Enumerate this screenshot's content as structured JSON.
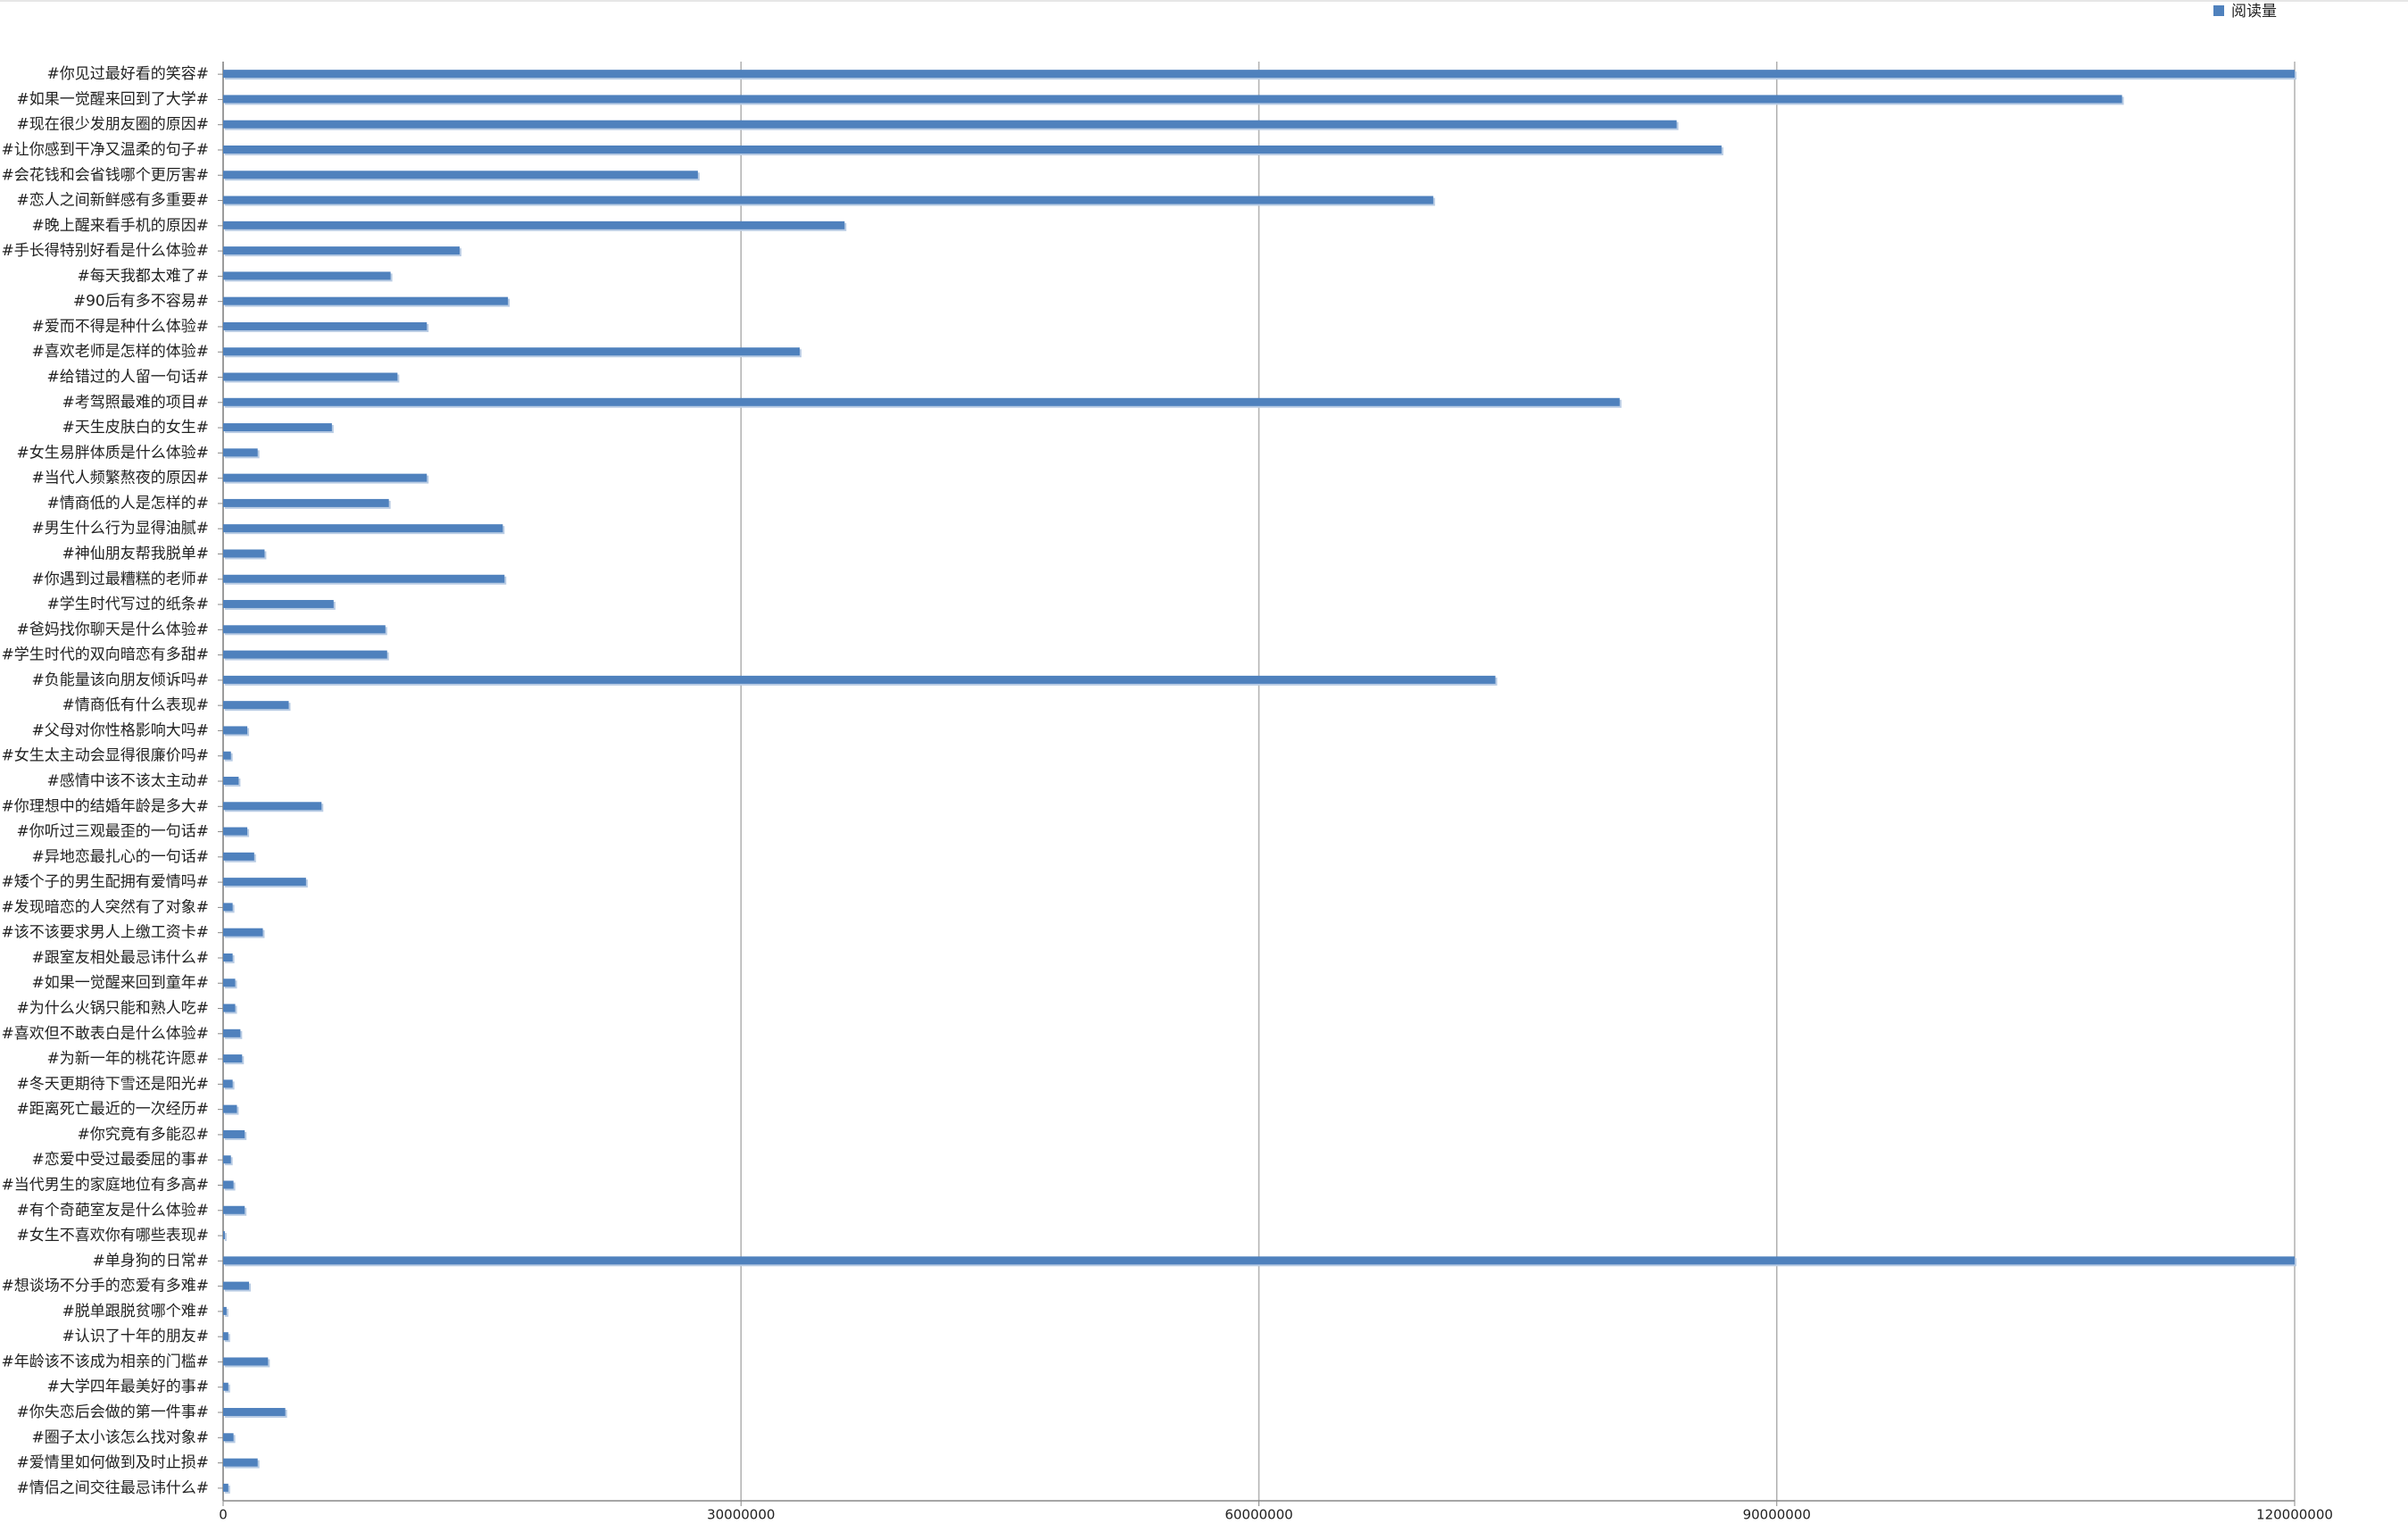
{
  "chart_data": {
    "type": "bar",
    "orientation": "horizontal",
    "categories": [
      "#你见过最好看的笑容#",
      "#如果一觉醒来回到了大学#",
      "#现在很少发朋友圈的原因#",
      "#让你感到干净又温柔的句子#",
      "#会花钱和会省钱哪个更厉害#",
      "#恋人之间新鲜感有多重要#",
      "#晚上醒来看手机的原因#",
      "#手长得特别好看是什么体验#",
      "#每天我都太难了#",
      "#90后有多不容易#",
      "#爱而不得是种什么体验#",
      "#喜欢老师是怎样的体验#",
      "#给错过的人留一句话#",
      "#考驾照最难的项目#",
      "#天生皮肤白的女生#",
      "#女生易胖体质是什么体验#",
      "#当代人频繁熬夜的原因#",
      "#情商低的人是怎样的#",
      "#男生什么行为显得油腻#",
      "#神仙朋友帮我脱单#",
      "#你遇到过最糟糕的老师#",
      "#学生时代写过的纸条#",
      "#爸妈找你聊天是什么体验#",
      "#学生时代的双向暗恋有多甜#",
      "#负能量该向朋友倾诉吗#",
      "#情商低有什么表现#",
      "#父母对你性格影响大吗#",
      "#女生太主动会显得很廉价吗#",
      "#感情中该不该太主动#",
      "#你理想中的结婚年龄是多大#",
      "#你听过三观最歪的一句话#",
      "#异地恋最扎心的一句话#",
      "#矮个子的男生配拥有爱情吗#",
      "#发现暗恋的人突然有了对象#",
      "#该不该要求男人上缴工资卡#",
      "#跟室友相处最忌讳什么#",
      "#如果一觉醒来回到童年#",
      "#为什么火锅只能和熟人吃#",
      "#喜欢但不敢表白是什么体验#",
      "#为新一年的桃花许愿#",
      "#冬天更期待下雪还是阳光#",
      "#距离死亡最近的一次经历#",
      "#你究竟有多能忍#",
      "#恋爱中受过最委屈的事#",
      "#当代男生的家庭地位有多高#",
      "#有个奇葩室友是什么体验#",
      "#女生不喜欢你有哪些表现#",
      "#单身狗的日常#",
      "#想谈场不分手的恋爱有多难#",
      "#脱单跟脱贫哪个难#",
      "#认识了十年的朋友#",
      "#年龄该不该成为相亲的门槛#",
      "#大学四年最美好的事#",
      "#你失恋后会做的第一件事#",
      "#圈子太小该怎么找对象#",
      "#爱情里如何做到及时止损#",
      "#情侣之间交往最忌讳什么#"
    ],
    "series": [
      {
        "name": "阅读量",
        "color": "#4f81bd",
        "values": [
          120000000,
          110000000,
          84200000,
          86800000,
          27500000,
          70100000,
          36000000,
          13700000,
          9700000,
          16500000,
          11800000,
          33400000,
          10100000,
          80900000,
          6300000,
          2000000,
          11800000,
          9600000,
          16200000,
          2400000,
          16300000,
          6400000,
          9400000,
          9500000,
          73700000,
          3800000,
          1400000,
          450000,
          900000,
          5700000,
          1400000,
          1800000,
          4800000,
          550000,
          2300000,
          550000,
          700000,
          700000,
          1000000,
          1100000,
          550000,
          800000,
          1250000,
          450000,
          600000,
          1250000,
          100000,
          120000000,
          1500000,
          200000,
          300000,
          2600000,
          300000,
          3600000,
          600000,
          2000000,
          300000
        ]
      }
    ],
    "xlim": [
      0,
      120000000
    ],
    "xticks": [
      0,
      30000000,
      60000000,
      90000000,
      120000000
    ],
    "grid": true,
    "legend": "top-right"
  }
}
